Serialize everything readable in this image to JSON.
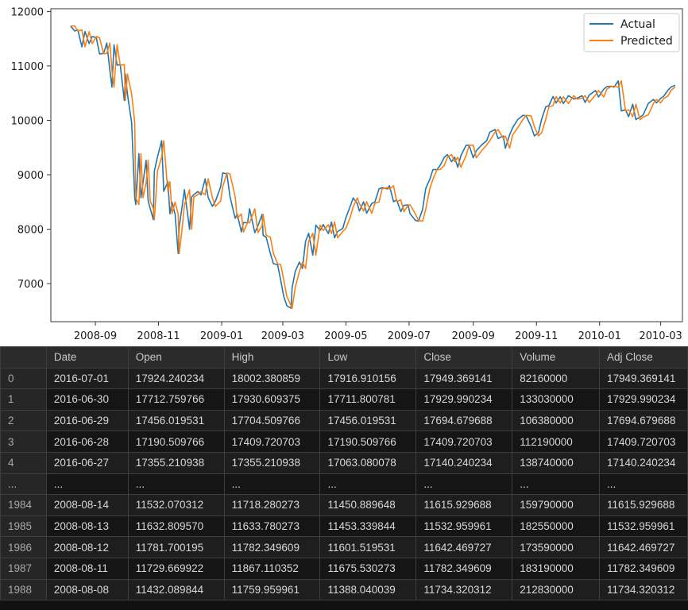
{
  "chart_data": {
    "type": "line",
    "x_ticks": [
      "2008-09",
      "2008-11",
      "2009-01",
      "2009-03",
      "2009-05",
      "2009-07",
      "2009-09",
      "2009-11",
      "2010-01",
      "2010-03"
    ],
    "y_ticks": [
      "7000",
      "8000",
      "9000",
      "10000",
      "11000",
      "12000"
    ],
    "xlim": [
      "2008-07-20",
      "2010-03-22"
    ],
    "ylim": [
      6300,
      12050
    ],
    "grid": false,
    "legend_position": "top-right",
    "series": [
      {
        "name": "Actual",
        "color": "#1f77b4",
        "points": [
          [
            "2008-08-08",
            11734
          ],
          [
            "2008-08-12",
            11642
          ],
          [
            "2008-08-15",
            11660
          ],
          [
            "2008-08-19",
            11350
          ],
          [
            "2008-08-22",
            11630
          ],
          [
            "2008-08-26",
            11410
          ],
          [
            "2008-08-29",
            11540
          ],
          [
            "2008-09-02",
            11516
          ],
          [
            "2008-09-05",
            11220
          ],
          [
            "2008-09-09",
            11230
          ],
          [
            "2008-09-12",
            11420
          ],
          [
            "2008-09-15",
            10917
          ],
          [
            "2008-09-17",
            10610
          ],
          [
            "2008-09-19",
            11388
          ],
          [
            "2008-09-22",
            11015
          ],
          [
            "2008-09-25",
            11022
          ],
          [
            "2008-09-29",
            10365
          ],
          [
            "2008-09-30",
            10850
          ],
          [
            "2008-10-02",
            10482
          ],
          [
            "2008-10-06",
            9955
          ],
          [
            "2008-10-09",
            8579
          ],
          [
            "2008-10-10",
            8451
          ],
          [
            "2008-10-13",
            9387
          ],
          [
            "2008-10-15",
            8577
          ],
          [
            "2008-10-17",
            8852
          ],
          [
            "2008-10-20",
            9265
          ],
          [
            "2008-10-22",
            8519
          ],
          [
            "2008-10-24",
            8378
          ],
          [
            "2008-10-27",
            8175
          ],
          [
            "2008-10-28",
            9065
          ],
          [
            "2008-10-31",
            9325
          ],
          [
            "2008-11-04",
            9625
          ],
          [
            "2008-11-06",
            8696
          ],
          [
            "2008-11-10",
            8870
          ],
          [
            "2008-11-12",
            8283
          ],
          [
            "2008-11-14",
            8497
          ],
          [
            "2008-11-17",
            8273
          ],
          [
            "2008-11-20",
            7552
          ],
          [
            "2008-11-21",
            8046
          ],
          [
            "2008-11-24",
            8443
          ],
          [
            "2008-11-26",
            8726
          ],
          [
            "2008-12-01",
            7997
          ],
          [
            "2008-12-03",
            8591
          ],
          [
            "2008-12-05",
            8635
          ],
          [
            "2008-12-09",
            8691
          ],
          [
            "2008-12-12",
            8630
          ],
          [
            "2008-12-16",
            8924
          ],
          [
            "2008-12-19",
            8579
          ],
          [
            "2008-12-23",
            8419
          ],
          [
            "2008-12-26",
            8515
          ],
          [
            "2008-12-31",
            8776
          ],
          [
            "2009-01-02",
            9034
          ],
          [
            "2009-01-06",
            9015
          ],
          [
            "2009-01-09",
            8599
          ],
          [
            "2009-01-14",
            8200
          ],
          [
            "2009-01-16",
            8281
          ],
          [
            "2009-01-20",
            7949
          ],
          [
            "2009-01-22",
            8122
          ],
          [
            "2009-01-26",
            8116
          ],
          [
            "2009-01-28",
            8375
          ],
          [
            "2009-02-02",
            7936
          ],
          [
            "2009-02-05",
            8063
          ],
          [
            "2009-02-09",
            8270
          ],
          [
            "2009-02-10",
            7888
          ],
          [
            "2009-02-13",
            7850
          ],
          [
            "2009-02-17",
            7552
          ],
          [
            "2009-02-20",
            7366
          ],
          [
            "2009-02-24",
            7350
          ],
          [
            "2009-02-27",
            7063
          ],
          [
            "2009-03-02",
            6763
          ],
          [
            "2009-03-05",
            6594
          ],
          [
            "2009-03-09",
            6547
          ],
          [
            "2009-03-10",
            6926
          ],
          [
            "2009-03-13",
            7223
          ],
          [
            "2009-03-17",
            7395
          ],
          [
            "2009-03-20",
            7278
          ],
          [
            "2009-03-23",
            7776
          ],
          [
            "2009-03-26",
            7924
          ],
          [
            "2009-03-30",
            7522
          ],
          [
            "2009-04-02",
            8075
          ],
          [
            "2009-04-06",
            7975
          ],
          [
            "2009-04-09",
            8083
          ],
          [
            "2009-04-14",
            7920
          ],
          [
            "2009-04-17",
            8131
          ],
          [
            "2009-04-20",
            7841
          ],
          [
            "2009-04-23",
            7957
          ],
          [
            "2009-04-28",
            8016
          ],
          [
            "2009-05-01",
            8212
          ],
          [
            "2009-05-05",
            8410
          ],
          [
            "2009-05-08",
            8574
          ],
          [
            "2009-05-12",
            8469
          ],
          [
            "2009-05-14",
            8331
          ],
          [
            "2009-05-18",
            8504
          ],
          [
            "2009-05-21",
            8292
          ],
          [
            "2009-05-26",
            8473
          ],
          [
            "2009-05-29",
            8500
          ],
          [
            "2009-06-02",
            8740
          ],
          [
            "2009-06-05",
            8763
          ],
          [
            "2009-06-10",
            8739
          ],
          [
            "2009-06-12",
            8799
          ],
          [
            "2009-06-16",
            8505
          ],
          [
            "2009-06-19",
            8539
          ],
          [
            "2009-06-23",
            8322
          ],
          [
            "2009-06-26",
            8438
          ],
          [
            "2009-06-30",
            8447
          ],
          [
            "2009-07-02",
            8280
          ],
          [
            "2009-07-07",
            8163
          ],
          [
            "2009-07-10",
            8146
          ],
          [
            "2009-07-14",
            8360
          ],
          [
            "2009-07-17",
            8743
          ],
          [
            "2009-07-21",
            8916
          ],
          [
            "2009-07-24",
            9093
          ],
          [
            "2009-07-28",
            9096
          ],
          [
            "2009-07-31",
            9171
          ],
          [
            "2009-08-04",
            9320
          ],
          [
            "2009-08-07",
            9370
          ],
          [
            "2009-08-11",
            9241
          ],
          [
            "2009-08-14",
            9321
          ],
          [
            "2009-08-17",
            9135
          ],
          [
            "2009-08-20",
            9350
          ],
          [
            "2009-08-25",
            9539
          ],
          [
            "2009-08-28",
            9544
          ],
          [
            "2009-09-01",
            9310
          ],
          [
            "2009-09-04",
            9441
          ],
          [
            "2009-09-09",
            9547
          ],
          [
            "2009-09-14",
            9627
          ],
          [
            "2009-09-17",
            9783
          ],
          [
            "2009-09-22",
            9830
          ],
          [
            "2009-09-25",
            9666
          ],
          [
            "2009-09-30",
            9712
          ],
          [
            "2009-10-02",
            9488
          ],
          [
            "2009-10-06",
            9731
          ],
          [
            "2009-10-09",
            9865
          ],
          [
            "2009-10-14",
            10016
          ],
          [
            "2009-10-19",
            10092
          ],
          [
            "2009-10-22",
            10081
          ],
          [
            "2009-10-27",
            9882
          ],
          [
            "2009-10-30",
            9713
          ],
          [
            "2009-11-03",
            9772
          ],
          [
            "2009-11-06",
            10023
          ],
          [
            "2009-11-10",
            10247
          ],
          [
            "2009-11-13",
            10270
          ],
          [
            "2009-11-17",
            10437
          ],
          [
            "2009-11-20",
            10318
          ],
          [
            "2009-11-24",
            10433
          ],
          [
            "2009-11-27",
            10309
          ],
          [
            "2009-12-02",
            10453
          ],
          [
            "2009-12-07",
            10390
          ],
          [
            "2009-12-10",
            10405
          ],
          [
            "2009-12-15",
            10452
          ],
          [
            "2009-12-18",
            10328
          ],
          [
            "2009-12-22",
            10464
          ],
          [
            "2009-12-28",
            10547
          ],
          [
            "2009-12-31",
            10428
          ],
          [
            "2010-01-05",
            10573
          ],
          [
            "2010-01-08",
            10618
          ],
          [
            "2010-01-12",
            10627
          ],
          [
            "2010-01-15",
            10610
          ],
          [
            "2010-01-19",
            10725
          ],
          [
            "2010-01-22",
            10172
          ],
          [
            "2010-01-26",
            10194
          ],
          [
            "2010-01-29",
            10067
          ],
          [
            "2010-02-02",
            10296
          ],
          [
            "2010-02-05",
            10012
          ],
          [
            "2010-02-09",
            10058
          ],
          [
            "2010-02-12",
            10099
          ],
          [
            "2010-02-17",
            10309
          ],
          [
            "2010-02-22",
            10383
          ],
          [
            "2010-02-25",
            10321
          ],
          [
            "2010-03-01",
            10403
          ],
          [
            "2010-03-04",
            10444
          ],
          [
            "2010-03-08",
            10552
          ],
          [
            "2010-03-11",
            10611
          ],
          [
            "2010-03-15",
            10643
          ]
        ]
      },
      {
        "name": "Predicted",
        "color": "#ff7f0e",
        "lag_points": 1
      }
    ]
  },
  "table": {
    "columns": [
      "",
      "Date",
      "Open",
      "High",
      "Low",
      "Close",
      "Volume",
      "Adj Close"
    ],
    "rows": [
      [
        "0",
        "2016-07-01",
        "17924.240234",
        "18002.380859",
        "17916.910156",
        "17949.369141",
        "82160000",
        "17949.369141"
      ],
      [
        "1",
        "2016-06-30",
        "17712.759766",
        "17930.609375",
        "17711.800781",
        "17929.990234",
        "133030000",
        "17929.990234"
      ],
      [
        "2",
        "2016-06-29",
        "17456.019531",
        "17704.509766",
        "17456.019531",
        "17694.679688",
        "106380000",
        "17694.679688"
      ],
      [
        "3",
        "2016-06-28",
        "17190.509766",
        "17409.720703",
        "17190.509766",
        "17409.720703",
        "112190000",
        "17409.720703"
      ],
      [
        "4",
        "2016-06-27",
        "17355.210938",
        "17355.210938",
        "17063.080078",
        "17140.240234",
        "138740000",
        "17140.240234"
      ],
      [
        "...",
        "...",
        "...",
        "...",
        "...",
        "...",
        "...",
        "..."
      ],
      [
        "1984",
        "2008-08-14",
        "11532.070312",
        "11718.280273",
        "11450.889648",
        "11615.929688",
        "159790000",
        "11615.929688"
      ],
      [
        "1985",
        "2008-08-13",
        "11632.809570",
        "11633.780273",
        "11453.339844",
        "11532.959961",
        "182550000",
        "11532.959961"
      ],
      [
        "1986",
        "2008-08-12",
        "11781.700195",
        "11782.349609",
        "11601.519531",
        "11642.469727",
        "173590000",
        "11642.469727"
      ],
      [
        "1987",
        "2008-08-11",
        "11729.669922",
        "11867.110352",
        "11675.530273",
        "11782.349609",
        "183190000",
        "11782.349609"
      ],
      [
        "1988",
        "2008-08-08",
        "11432.089844",
        "11759.959961",
        "11388.040039",
        "11734.320312",
        "212830000",
        "11734.320312"
      ]
    ]
  }
}
